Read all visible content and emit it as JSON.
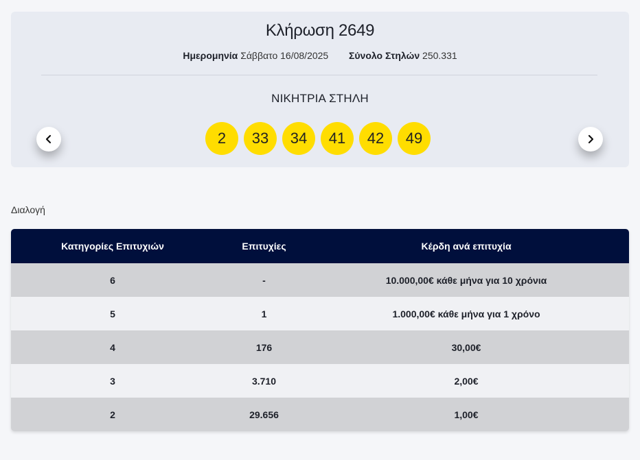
{
  "draw": {
    "title": "Κλήρωση 2649",
    "date_label": "Ημερομηνία",
    "date_value": "Σάββατο 16/08/2025",
    "total_label": "Σύνολο Στηλών",
    "total_value": "250.331",
    "winning_label": "ΝΙΚΗΤΡΙΑ ΣΤΗΛΗ",
    "numbers": [
      "2",
      "33",
      "34",
      "41",
      "42",
      "49"
    ]
  },
  "section_label": "Διαλογή",
  "table": {
    "headers": [
      "Κατηγορίες Επιτυχιών",
      "Επιτυχίες",
      "Κέρδη ανά επιτυχία"
    ],
    "rows": [
      {
        "category": "6",
        "winners": "-",
        "prize": "10.000,00€ κάθε μήνα για 10 χρόνια"
      },
      {
        "category": "5",
        "winners": "1",
        "prize": "1.000,00€ κάθε μήνα για 1 χρόνο"
      },
      {
        "category": "4",
        "winners": "176",
        "prize": "30,00€"
      },
      {
        "category": "3",
        "winners": "3.710",
        "prize": "2,00€"
      },
      {
        "category": "2",
        "winners": "29.656",
        "prize": "1,00€"
      }
    ]
  },
  "colors": {
    "ball": "#ffdd00",
    "header": "#000f3c",
    "card": "#e8ebf2"
  }
}
